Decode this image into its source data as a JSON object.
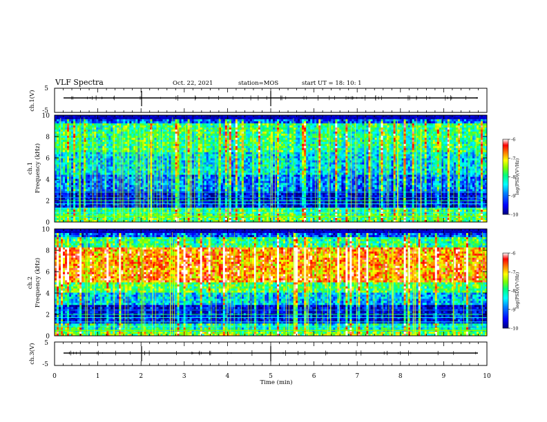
{
  "header": {
    "title": "VLF Spectra",
    "date": "Oct. 22, 2021",
    "station": "station=MOS",
    "start": "start  UT  =   18: 10: 1"
  },
  "chart_data": [
    {
      "type": "line",
      "name": "ch1-waveform",
      "ylabel": "ch.1(V)",
      "ylim": [
        -5,
        5
      ],
      "yticks": [
        "5",
        "-5"
      ],
      "x": [
        0,
        10
      ],
      "y_level": 0
    },
    {
      "type": "heatmap",
      "name": "ch1-spectrogram",
      "ylabel": "ch.1\nFrequency (kHz)",
      "ylim": [
        0,
        10
      ],
      "yticks": [
        "10",
        "8",
        "6",
        "4",
        "2",
        "0"
      ],
      "dominant_band_khz": [
        3,
        9.5
      ],
      "colorbar": {
        "label": "log(PSD)(V²/Hz)",
        "range": [
          -10,
          -6
        ],
        "ticks": [
          "-6",
          "-7",
          "-8",
          "-9",
          "-10"
        ]
      }
    },
    {
      "type": "heatmap",
      "name": "ch2-spectrogram",
      "ylabel": "ch.2\nFrequency (kHz)",
      "ylim": [
        0,
        10
      ],
      "yticks": [
        "10",
        "8",
        "6",
        "4",
        "2",
        "0"
      ],
      "dominant_band_khz": [
        5,
        8.5
      ],
      "colorbar": {
        "label": "log(PSD)(V²/Hz)",
        "range": [
          -10,
          -6
        ],
        "ticks": [
          "-6",
          "-7",
          "-8",
          "-9",
          "-10"
        ]
      }
    },
    {
      "type": "line",
      "name": "ch3-waveform",
      "ylabel": "ch.3(V)",
      "ylim": [
        -5,
        5
      ],
      "yticks": [
        "5",
        "-5"
      ],
      "x": [
        0,
        10
      ],
      "y_level": 0
    }
  ],
  "xaxis": {
    "label": "Time  (min)",
    "range": [
      0,
      10
    ],
    "ticks": [
      "0",
      "1",
      "2",
      "3",
      "4",
      "5",
      "6",
      "7",
      "8",
      "9",
      "10"
    ]
  },
  "colors": {
    "colormap": [
      "#00007f",
      "#0000ff",
      "#007fff",
      "#00ffff",
      "#00ff7f",
      "#7fff00",
      "#ffff00",
      "#ff7f00",
      "#ff0000",
      "#ffffff"
    ]
  }
}
